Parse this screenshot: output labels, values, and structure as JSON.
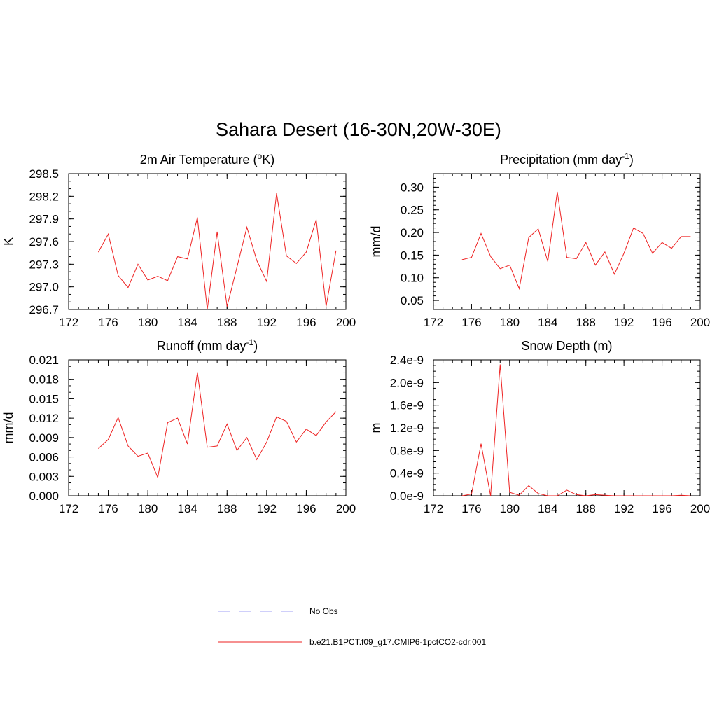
{
  "figure": {
    "title": "Sahara Desert (16-30N,20W-30E)"
  },
  "legend": {
    "entries": [
      {
        "label": "No Obs",
        "color": "#9f9ff5",
        "dash": "dashed"
      },
      {
        "label": "b.e21.B1PCT.f09_g17.CMIP6-1pctCO2-cdr.001",
        "color": "#ee2222",
        "dash": "solid"
      }
    ]
  },
  "chart_data": [
    {
      "type": "line",
      "title": "2m Air Temperature (",
      "title_sup": "o",
      "title_tail": "K)",
      "ylabel": "K",
      "xlim": [
        172,
        200
      ],
      "x_ticks": [
        172,
        176,
        180,
        184,
        188,
        192,
        196,
        200
      ],
      "x_minor_step": 1,
      "ylim": [
        296.7,
        298.5
      ],
      "y_ticks": [
        296.7,
        297.0,
        297.3,
        297.6,
        297.9,
        298.2,
        298.5
      ],
      "y_tick_labels": [
        "296.7",
        "297.0",
        "297.3",
        "297.6",
        "297.9",
        "298.2",
        "298.5"
      ],
      "y_minor_step": 0.1,
      "series": [
        {
          "name": "b.e21.B1PCT.f09_g17.CMIP6-1pctCO2-cdr.001",
          "color": "#ee2222",
          "x": [
            175,
            176,
            177,
            178,
            179,
            180,
            181,
            182,
            183,
            184,
            185,
            186,
            187,
            188,
            189,
            190,
            191,
            192,
            193,
            194,
            195,
            196,
            197,
            198,
            199
          ],
          "y": [
            297.46,
            297.7,
            297.15,
            296.99,
            297.3,
            297.09,
            297.14,
            297.08,
            297.4,
            297.37,
            297.92,
            296.7,
            297.73,
            296.74,
            297.26,
            297.79,
            297.35,
            297.07,
            298.24,
            297.41,
            297.31,
            297.46,
            297.89,
            296.74,
            297.48
          ]
        }
      ]
    },
    {
      "type": "line",
      "title": "Precipitation (mm day",
      "title_sup": "-1",
      "title_tail": ")",
      "ylabel": "mm/d",
      "xlim": [
        172,
        200
      ],
      "x_ticks": [
        172,
        176,
        180,
        184,
        188,
        192,
        196,
        200
      ],
      "x_minor_step": 1,
      "ylim": [
        0.03,
        0.33
      ],
      "y_ticks": [
        0.05,
        0.1,
        0.15,
        0.2,
        0.25,
        0.3
      ],
      "y_tick_labels": [
        "0.05",
        "0.10",
        "0.15",
        "0.20",
        "0.25",
        "0.30"
      ],
      "y_minor_step": 0.01,
      "series": [
        {
          "name": "b.e21.B1PCT.f09_g17.CMIP6-1pctCO2-cdr.001",
          "color": "#ee2222",
          "x": [
            175,
            176,
            177,
            178,
            179,
            180,
            181,
            182,
            183,
            184,
            185,
            186,
            187,
            188,
            189,
            190,
            191,
            192,
            193,
            194,
            195,
            196,
            197,
            198,
            199
          ],
          "y": [
            0.14,
            0.145,
            0.198,
            0.147,
            0.12,
            0.128,
            0.076,
            0.189,
            0.208,
            0.136,
            0.29,
            0.145,
            0.142,
            0.178,
            0.128,
            0.157,
            0.108,
            0.154,
            0.21,
            0.198,
            0.154,
            0.178,
            0.165,
            0.191,
            0.191
          ]
        }
      ]
    },
    {
      "type": "line",
      "title": "Runoff (mm day",
      "title_sup": "-1",
      "title_tail": ")",
      "ylabel": "mm/d",
      "xlim": [
        172,
        200
      ],
      "x_ticks": [
        172,
        176,
        180,
        184,
        188,
        192,
        196,
        200
      ],
      "x_minor_step": 1,
      "ylim": [
        0.0,
        0.021
      ],
      "y_ticks": [
        0.0,
        0.003,
        0.006,
        0.009,
        0.012,
        0.015,
        0.018,
        0.021
      ],
      "y_tick_labels": [
        "0.000",
        "0.003",
        "0.006",
        "0.009",
        "0.012",
        "0.015",
        "0.018",
        "0.021"
      ],
      "y_minor_step": 0.001,
      "series": [
        {
          "name": "b.e21.B1PCT.f09_g17.CMIP6-1pctCO2-cdr.001",
          "color": "#ee2222",
          "x": [
            175,
            176,
            177,
            178,
            179,
            180,
            181,
            182,
            183,
            184,
            185,
            186,
            187,
            188,
            189,
            190,
            191,
            192,
            193,
            194,
            195,
            196,
            197,
            198,
            199
          ],
          "y": [
            0.0073,
            0.0087,
            0.0121,
            0.0077,
            0.0061,
            0.0066,
            0.0028,
            0.0113,
            0.012,
            0.008,
            0.0191,
            0.0075,
            0.0077,
            0.0111,
            0.007,
            0.009,
            0.0056,
            0.0083,
            0.0122,
            0.0115,
            0.0083,
            0.0103,
            0.0093,
            0.0114,
            0.013
          ]
        }
      ]
    },
    {
      "type": "line",
      "title": "Snow Depth (m)",
      "title_sup": "",
      "title_tail": "",
      "ylabel": "m",
      "xlim": [
        172,
        200
      ],
      "x_ticks": [
        172,
        176,
        180,
        184,
        188,
        192,
        196,
        200
      ],
      "x_minor_step": 1,
      "ylim": [
        0.0,
        2.4e-09
      ],
      "y_ticks": [
        0.0,
        4e-10,
        8e-10,
        1.2e-09,
        1.6e-09,
        2e-09,
        2.4e-09
      ],
      "y_tick_labels": [
        "0.0e-9",
        "0.4e-9",
        "0.8e-9",
        "1.2e-9",
        "1.6e-9",
        "2.0e-9",
        "2.4e-9"
      ],
      "y_minor_step": 1e-10,
      "series": [
        {
          "name": "b.e21.B1PCT.f09_g17.CMIP6-1pctCO2-cdr.001",
          "color": "#ee2222",
          "x": [
            175,
            176,
            177,
            178,
            179,
            180,
            181,
            182,
            183,
            184,
            185,
            186,
            187,
            188,
            189,
            190,
            191,
            192,
            193,
            194,
            195,
            196,
            197,
            198,
            199
          ],
          "y": [
            0.0,
            3e-11,
            9.2e-10,
            0.0,
            2.32e-09,
            6e-11,
            1e-11,
            1.8e-10,
            4e-11,
            0.0,
            0.0,
            1e-10,
            2e-11,
            0.0,
            2e-11,
            1e-11,
            0.0,
            0.0,
            0.0,
            0.0,
            0.0,
            0.0,
            0.0,
            1e-11,
            0.0
          ]
        }
      ]
    }
  ]
}
